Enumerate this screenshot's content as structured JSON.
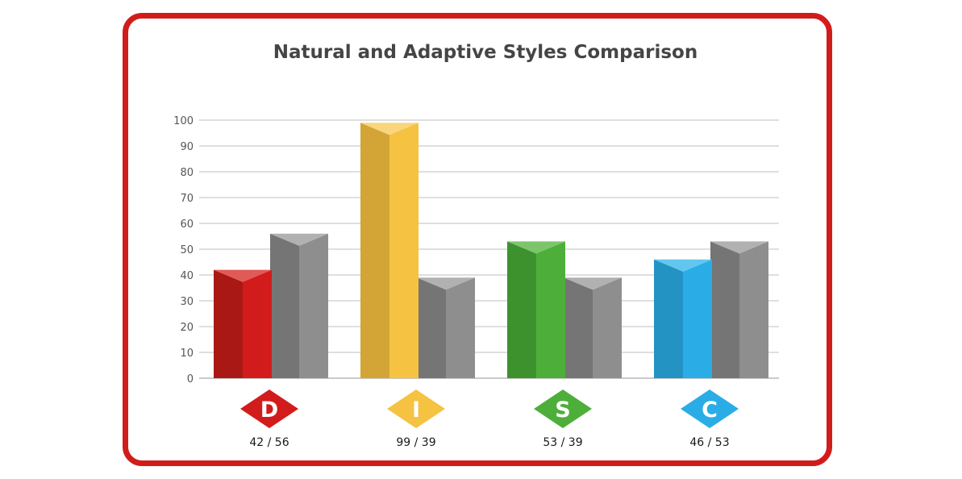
{
  "chart_data": {
    "type": "bar",
    "title": "Natural and Adaptive Styles Comparison",
    "categories": [
      "D",
      "I",
      "S",
      "C"
    ],
    "score_labels": [
      "42 / 56",
      "99 / 39",
      "53 / 39",
      "46 / 53"
    ],
    "series": [
      {
        "values": [
          42,
          99,
          53,
          46
        ]
      },
      {
        "values": [
          56,
          39,
          39,
          53
        ]
      }
    ],
    "ylim": [
      0,
      100
    ],
    "yticks": [
      "0",
      "10",
      "20",
      "30",
      "40",
      "50",
      "60",
      "70",
      "80",
      "90",
      "100"
    ],
    "grid": true,
    "category_colors": [
      "#d21c1c",
      "#f5c242",
      "#4daf3a",
      "#2aade6"
    ],
    "category_side_colors": [
      "#a91814",
      "#d3a536",
      "#3e922e",
      "#2393c4"
    ],
    "category_top_colors": [
      "#e05a57",
      "#f9d57d",
      "#7dc56d",
      "#62c7ef"
    ],
    "second_series_color": "#8e8e8e",
    "second_series_side_color": "#757575",
    "second_series_top_color": "#b1b1b1",
    "frame_color": "#d21c1c",
    "grid_color": "#cccccc"
  }
}
